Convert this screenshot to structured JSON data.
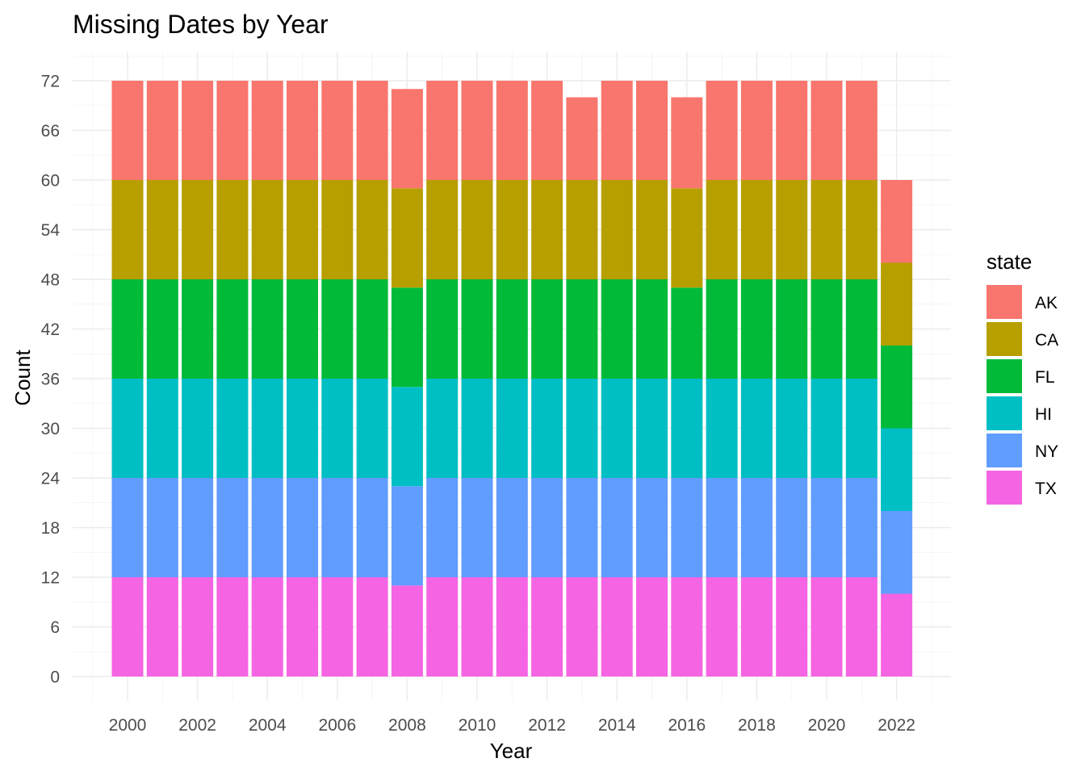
{
  "chart_data": {
    "type": "bar",
    "stacked": true,
    "title": "Missing Dates by Year",
    "xlabel": "Year",
    "ylabel": "Count",
    "categories": [
      2000,
      2001,
      2002,
      2003,
      2004,
      2005,
      2006,
      2007,
      2008,
      2009,
      2010,
      2011,
      2012,
      2013,
      2014,
      2015,
      2016,
      2017,
      2018,
      2019,
      2020,
      2021,
      2022
    ],
    "x_ticks": [
      "2000",
      "2002",
      "2004",
      "2006",
      "2008",
      "2010",
      "2012",
      "2014",
      "2016",
      "2018",
      "2020",
      "2022"
    ],
    "y_ticks": [
      "0",
      "6",
      "12",
      "18",
      "24",
      "30",
      "36",
      "42",
      "48",
      "54",
      "60",
      "66",
      "72"
    ],
    "ylim": [
      0,
      72
    ],
    "grid": true,
    "legend": {
      "title": "state",
      "position": "right"
    },
    "series": [
      {
        "name": "AK",
        "color": "#F8766D",
        "values": [
          12,
          12,
          12,
          12,
          12,
          12,
          12,
          12,
          12,
          12,
          12,
          12,
          12,
          10,
          12,
          12,
          11,
          12,
          12,
          12,
          12,
          12,
          10
        ]
      },
      {
        "name": "CA",
        "color": "#B79F00",
        "values": [
          12,
          12,
          12,
          12,
          12,
          12,
          12,
          12,
          12,
          12,
          12,
          12,
          12,
          12,
          12,
          12,
          12,
          12,
          12,
          12,
          12,
          12,
          10
        ]
      },
      {
        "name": "FL",
        "color": "#00BA38",
        "values": [
          12,
          12,
          12,
          12,
          12,
          12,
          12,
          12,
          12,
          12,
          12,
          12,
          12,
          12,
          12,
          12,
          11,
          12,
          12,
          12,
          12,
          12,
          10
        ]
      },
      {
        "name": "HI",
        "color": "#00BFC4",
        "values": [
          12,
          12,
          12,
          12,
          12,
          12,
          12,
          12,
          12,
          12,
          12,
          12,
          12,
          12,
          12,
          12,
          12,
          12,
          12,
          12,
          12,
          12,
          10
        ]
      },
      {
        "name": "NY",
        "color": "#619CFF",
        "values": [
          12,
          12,
          12,
          12,
          12,
          12,
          12,
          12,
          12,
          12,
          12,
          12,
          12,
          12,
          12,
          12,
          12,
          12,
          12,
          12,
          12,
          12,
          10
        ]
      },
      {
        "name": "TX",
        "color": "#F564E3",
        "values": [
          12,
          12,
          12,
          12,
          12,
          12,
          12,
          12,
          11,
          12,
          12,
          12,
          12,
          12,
          12,
          12,
          12,
          12,
          12,
          12,
          12,
          12,
          10
        ]
      }
    ]
  }
}
